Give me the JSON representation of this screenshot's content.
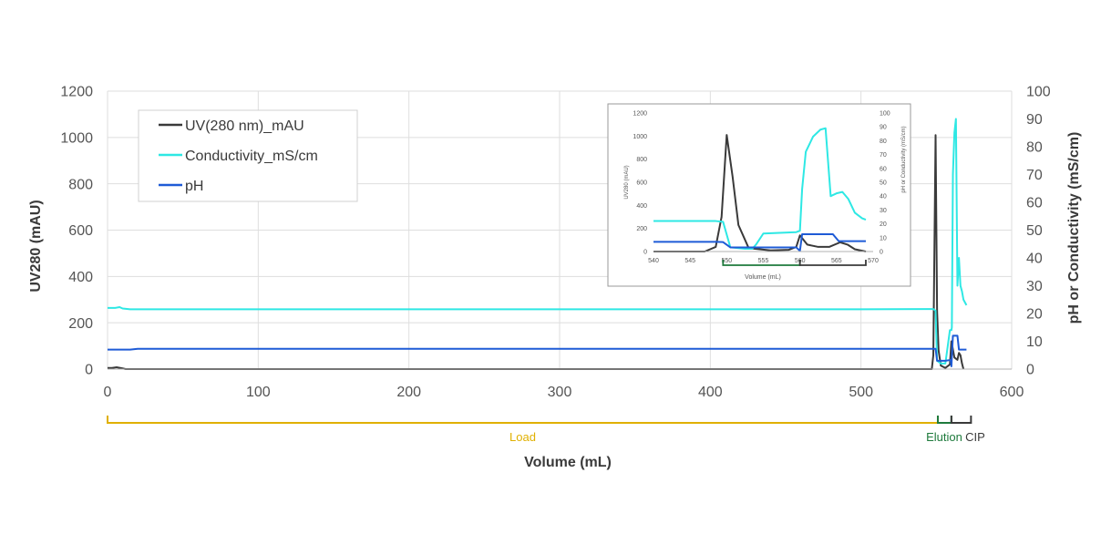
{
  "chart_data": [
    {
      "type": "line",
      "title": "",
      "xlabel": "Volume (mL)",
      "ylabel": "UV280 (mAU)",
      "y2label": "pH or Conductivity (mS/cm)",
      "xlim": [
        0,
        600
      ],
      "ylim": [
        0,
        1200
      ],
      "y2lim": [
        0,
        100
      ],
      "xticks": [
        "0",
        "100",
        "200",
        "300",
        "400",
        "500",
        "600"
      ],
      "yticks": [
        "0",
        "200",
        "400",
        "600",
        "800",
        "1000",
        "1200"
      ],
      "y2ticks": [
        "0",
        "10",
        "20",
        "30",
        "40",
        "50",
        "60",
        "70",
        "80",
        "90",
        "100"
      ],
      "grid": true,
      "legend": "top-left",
      "colors": {
        "uv": "#3a3a3a",
        "conductivity": "#2ee8e4",
        "ph": "#1e5bd6",
        "load": "#e0b000",
        "elution": "#1e7a3c",
        "cip": "#3a3a3a",
        "grid": "#dedede",
        "axis_text": "#555555"
      },
      "series": [
        {
          "name": "UV(280 nm)_mAU",
          "axis": "left",
          "color": "#3a3a3a",
          "x": [
            0,
            3,
            6,
            10,
            12,
            20,
            547,
            548,
            549.5,
            550.5,
            551.5,
            553,
            556,
            559,
            560,
            562,
            564,
            565,
            566,
            567,
            568
          ],
          "y": [
            5,
            5,
            8,
            3,
            0,
            0,
            0,
            60,
            1010,
            250,
            80,
            15,
            5,
            20,
            120,
            50,
            40,
            70,
            60,
            25,
            0
          ]
        },
        {
          "name": "Conductivity_mS/cm",
          "axis": "right",
          "color": "#2ee8e4",
          "x": [
            0,
            5,
            8,
            10,
            15,
            100,
            300,
            500,
            548,
            549.5,
            550.5,
            553,
            556,
            559,
            560,
            560.3,
            561,
            562,
            563,
            564,
            565,
            566,
            567,
            568,
            570
          ],
          "y": [
            22,
            22,
            22.3,
            21.8,
            21.5,
            21.5,
            21.5,
            21.5,
            21.6,
            21,
            3,
            2,
            2,
            14,
            14,
            15,
            70,
            85,
            90,
            30,
            40,
            30,
            28,
            25,
            23
          ]
        },
        {
          "name": "pH",
          "axis": "right",
          "color": "#1e5bd6",
          "x": [
            0,
            15,
            20,
            100,
            300,
            500,
            548,
            549.5,
            550.5,
            556,
            559.5,
            560,
            561,
            563,
            564,
            565,
            567,
            570
          ],
          "y": [
            7,
            7,
            7.3,
            7.3,
            7.3,
            7.3,
            7.3,
            7.3,
            3,
            3,
            3.3,
            1,
            12,
            12,
            12,
            7,
            7,
            7
          ]
        }
      ],
      "annotations": [
        {
          "label": "Load",
          "x_start": 0,
          "x_end": 551,
          "color": "#e0b000"
        },
        {
          "label": "Elution",
          "x_start": 551,
          "x_end": 560,
          "color": "#1e7a3c"
        },
        {
          "label": "CIP",
          "x_start": 560,
          "x_end": 573,
          "color": "#3a3a3a"
        }
      ]
    },
    {
      "type": "line",
      "title": "",
      "position": "inset",
      "xlabel": "Volume (mL)",
      "ylabel": "UV280 (mAU)",
      "y2label": "pH or Conductivity (mS/cm)",
      "xlim": [
        540,
        570
      ],
      "ylim": [
        0,
        1200
      ],
      "y2lim": [
        0,
        100
      ],
      "xticks": [
        "540",
        "545",
        "550",
        "555",
        "560",
        "565",
        "570"
      ],
      "yticks": [
        "0",
        "200",
        "400",
        "600",
        "800",
        "1000",
        "1200"
      ],
      "y2ticks": [
        "0",
        "10",
        "20",
        "30",
        "40",
        "50",
        "60",
        "70",
        "80",
        "90",
        "100"
      ],
      "grid": false,
      "series": [
        {
          "name": "UV(280 nm)_mAU",
          "axis": "left",
          "color": "#3a3a3a",
          "x": [
            540,
            547,
            548.5,
            549.3,
            550,
            550.8,
            551.6,
            553,
            556,
            558.5,
            559.5,
            560,
            561,
            562.5,
            564,
            565.5,
            566.5,
            567.5,
            569
          ],
          "y": [
            0,
            0,
            40,
            300,
            1010,
            650,
            230,
            30,
            10,
            15,
            40,
            140,
            60,
            40,
            40,
            80,
            60,
            20,
            0
          ]
        },
        {
          "name": "Conductivity_mS/cm",
          "axis": "right",
          "color": "#2ee8e4",
          "x": [
            540,
            545,
            548.5,
            549.5,
            550.5,
            552.5,
            553.5,
            554,
            555,
            559.5,
            560,
            560.3,
            560.8,
            561.8,
            562.8,
            563.5,
            564.2,
            565,
            565.8,
            566.6,
            567.5,
            568.5,
            569
          ],
          "y": [
            22,
            22,
            22,
            21.5,
            3,
            2,
            2,
            5,
            13,
            14,
            15,
            45,
            72,
            83,
            88,
            89,
            40,
            42,
            43,
            38,
            28,
            24,
            23
          ]
        },
        {
          "name": "pH",
          "axis": "right",
          "color": "#1e5bd6",
          "x": [
            540,
            548.5,
            549.5,
            550.5,
            552,
            555,
            559.5,
            560,
            560.3,
            564.5,
            565.3,
            569
          ],
          "y": [
            7,
            7,
            6.8,
            3,
            3,
            3,
            3,
            0.5,
            12.5,
            12.5,
            7.5,
            7.5
          ]
        }
      ],
      "annotations": [
        {
          "label": "",
          "x_start": 549.5,
          "x_end": 560,
          "color": "#1e7a3c"
        },
        {
          "label": "",
          "x_start": 560,
          "x_end": 569,
          "color": "#3a3a3a"
        }
      ]
    }
  ]
}
